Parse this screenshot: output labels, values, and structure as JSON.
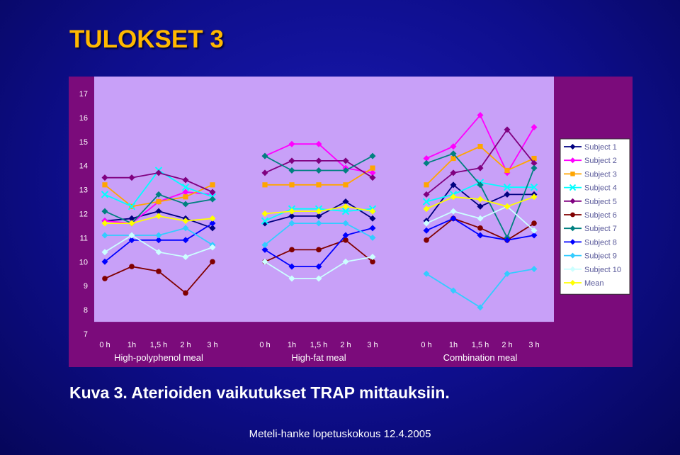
{
  "slide": {
    "title": "TULOKSET 3",
    "caption": "Kuva 3. Aterioiden vaikutukset TRAP mittauksiin.",
    "footer": "Meteli-hanke lopetuskokous 12.4.2005"
  },
  "chart_data": {
    "type": "line",
    "title": "",
    "xlabel": "",
    "ylabel": "",
    "ylim": [
      7,
      17
    ],
    "yticks": [
      7,
      8,
      9,
      10,
      11,
      12,
      13,
      14,
      15,
      16,
      17
    ],
    "grid": false,
    "legend_position": "right",
    "plot_background": "#c8a0f8",
    "groups": [
      "High-polyphenol meal",
      "High-fat meal",
      "Combination meal"
    ],
    "timepoints": [
      "0 h",
      "1h",
      "1,5 h",
      "2 h",
      "3 h"
    ],
    "series": [
      {
        "name": "Subject 1",
        "color": "#000080",
        "marker": "diamond",
        "values": [
          [
            11.7,
            11.8,
            12.1,
            11.8,
            11.4
          ],
          [
            11.6,
            11.9,
            11.9,
            12.5,
            11.8
          ],
          [
            11.7,
            13.2,
            12.3,
            12.8,
            12.8
          ]
        ]
      },
      {
        "name": "Subject 2",
        "color": "#ff00ff",
        "marker": "diamond",
        "values": [
          [
            11.7,
            11.6,
            12.5,
            12.9,
            12.8
          ],
          [
            14.4,
            14.9,
            14.9,
            13.9,
            13.7
          ],
          [
            14.3,
            14.8,
            16.1,
            13.7,
            15.6
          ]
        ]
      },
      {
        "name": "Subject 3",
        "color": "#ffa500",
        "marker": "square",
        "values": [
          [
            13.2,
            12.3,
            12.5,
            12.7,
            13.2
          ],
          [
            13.2,
            13.2,
            13.2,
            13.2,
            13.9
          ],
          [
            13.2,
            14.3,
            14.8,
            13.8,
            14.3
          ]
        ]
      },
      {
        "name": "Subject 4",
        "color": "#00ffff",
        "marker": "x",
        "values": [
          [
            12.8,
            12.3,
            13.8,
            13.1,
            12.7
          ],
          [
            11.7,
            12.2,
            12.2,
            12.1,
            12.2
          ],
          [
            12.5,
            12.8,
            13.3,
            13.1,
            13.1
          ]
        ]
      },
      {
        "name": "Subject 5",
        "color": "#800080",
        "marker": "diamond",
        "values": [
          [
            13.5,
            13.5,
            13.7,
            13.4,
            12.9
          ],
          [
            13.7,
            14.2,
            14.2,
            14.2,
            13.5
          ],
          [
            12.8,
            13.7,
            13.9,
            15.5,
            14.1
          ]
        ]
      },
      {
        "name": "Subject 6",
        "color": "#800000",
        "marker": "circle",
        "values": [
          [
            9.3,
            9.8,
            9.6,
            8.7,
            10.0
          ],
          [
            10.0,
            10.5,
            10.5,
            10.9,
            10.0
          ],
          [
            10.9,
            11.8,
            11.4,
            10.9,
            11.6
          ]
        ]
      },
      {
        "name": "Subject 7",
        "color": "#008080",
        "marker": "diamond",
        "values": [
          [
            12.1,
            11.6,
            12.8,
            12.4,
            12.6
          ],
          [
            14.4,
            13.8,
            13.8,
            13.8,
            14.4
          ],
          [
            14.1,
            14.5,
            13.2,
            11.0,
            13.9
          ]
        ]
      },
      {
        "name": "Subject 8",
        "color": "#0000ff",
        "marker": "diamond",
        "values": [
          [
            10.0,
            10.9,
            10.9,
            10.9,
            11.6
          ],
          [
            10.5,
            9.8,
            9.8,
            11.1,
            11.4
          ],
          [
            11.3,
            11.8,
            11.1,
            10.9,
            11.1
          ]
        ]
      },
      {
        "name": "Subject 9",
        "color": "#33ccff",
        "marker": "diamond",
        "values": [
          [
            11.1,
            11.1,
            11.1,
            11.4,
            10.7
          ],
          [
            10.7,
            11.6,
            11.6,
            11.6,
            11.0
          ],
          [
            9.5,
            8.8,
            8.1,
            9.5,
            9.7
          ]
        ]
      },
      {
        "name": "Subject 10",
        "color": "#ccffff",
        "marker": "diamond",
        "values": [
          [
            10.4,
            11.1,
            10.4,
            10.2,
            10.6
          ],
          [
            10.0,
            9.3,
            9.3,
            10.0,
            10.2
          ],
          [
            11.6,
            12.1,
            11.8,
            12.3,
            11.3
          ]
        ]
      },
      {
        "name": "Mean",
        "color": "#ffff00",
        "marker": "diamond",
        "values": [
          [
            11.6,
            11.6,
            11.9,
            11.7,
            11.8
          ],
          [
            12.0,
            12.1,
            12.1,
            12.3,
            12.1
          ],
          [
            12.2,
            12.7,
            12.6,
            12.3,
            12.7
          ]
        ]
      }
    ]
  }
}
